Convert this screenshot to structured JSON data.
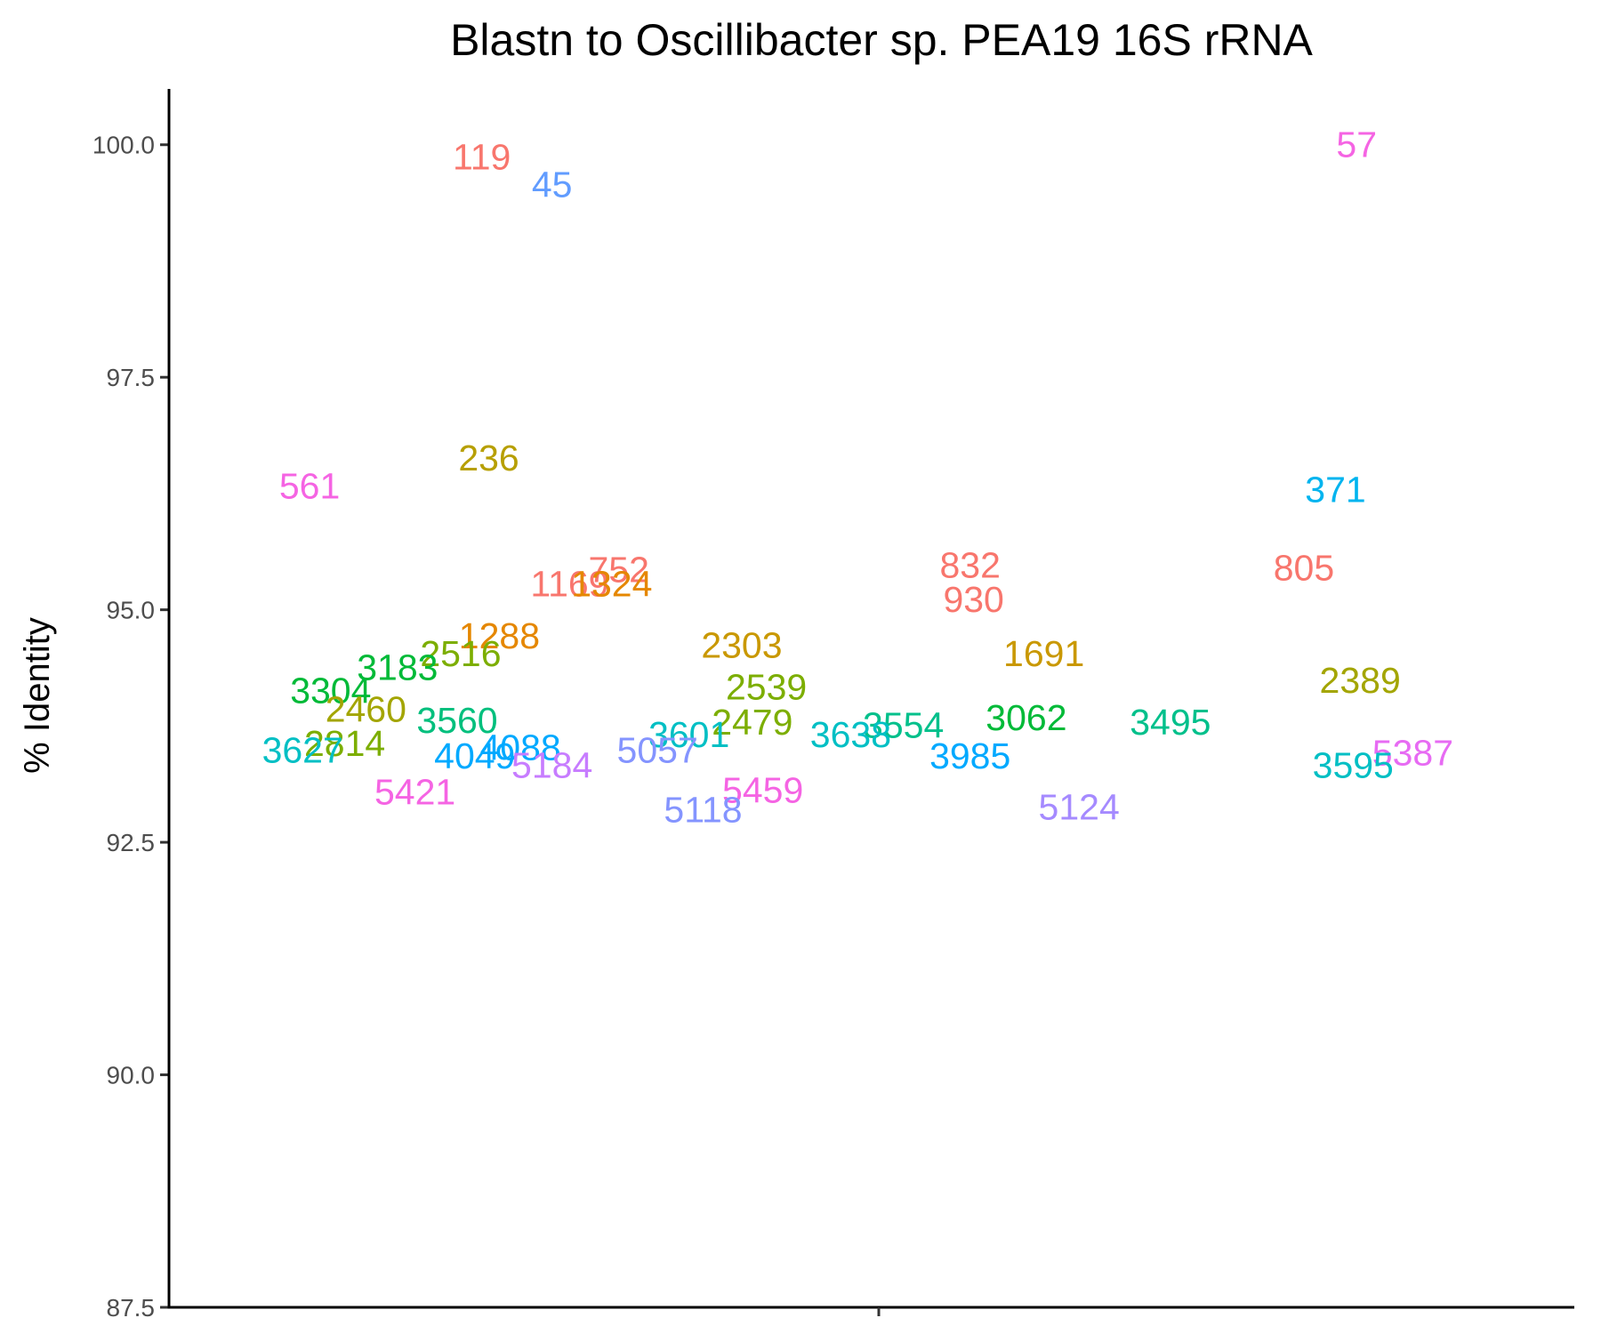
{
  "chart_data": {
    "type": "scatter",
    "title": "Blastn to Oscillibacter sp. PEA19 16S rRNA",
    "xlabel": "",
    "ylabel": "% Identity",
    "ylim": [
      87.5,
      100.6
    ],
    "yticks": [
      "87.5",
      "90.0",
      "92.5",
      "95.0",
      "97.5",
      "100.0"
    ],
    "grid": false,
    "legend": "none",
    "points": [
      {
        "label": "119",
        "x": -0.565,
        "y": 99.87,
        "color": "#F8766D"
      },
      {
        "label": "45",
        "x": -0.465,
        "y": 99.57,
        "color": "#619CFF"
      },
      {
        "label": "57",
        "x": 0.68,
        "y": 100.0,
        "color": "#F564E3"
      },
      {
        "label": "236",
        "x": -0.555,
        "y": 96.63,
        "color": "#B79F00"
      },
      {
        "label": "561",
        "x": -0.81,
        "y": 96.33,
        "color": "#F564E3"
      },
      {
        "label": "371",
        "x": 0.65,
        "y": 96.29,
        "color": "#00B4EF"
      },
      {
        "label": "752",
        "x": -0.37,
        "y": 95.43,
        "color": "#F8766D"
      },
      {
        "label": "832",
        "x": 0.13,
        "y": 95.48,
        "color": "#F8766D"
      },
      {
        "label": "805",
        "x": 0.605,
        "y": 95.45,
        "color": "#F8766D"
      },
      {
        "label": "1169",
        "x": -0.44,
        "y": 95.28,
        "color": "#F8766D"
      },
      {
        "label": "1324",
        "x": -0.38,
        "y": 95.28,
        "color": "#E58700"
      },
      {
        "label": "930",
        "x": 0.135,
        "y": 95.11,
        "color": "#F8766D"
      },
      {
        "label": "1288",
        "x": -0.54,
        "y": 94.72,
        "color": "#E58700"
      },
      {
        "label": "2303",
        "x": -0.195,
        "y": 94.62,
        "color": "#C99800"
      },
      {
        "label": "1691",
        "x": 0.235,
        "y": 94.53,
        "color": "#C99800"
      },
      {
        "label": "2516",
        "x": -0.595,
        "y": 94.53,
        "color": "#7CAE00"
      },
      {
        "label": "3183",
        "x": -0.685,
        "y": 94.38,
        "color": "#00BA38"
      },
      {
        "label": "2389",
        "x": 0.685,
        "y": 94.24,
        "color": "#A3A500"
      },
      {
        "label": "2539",
        "x": -0.16,
        "y": 94.17,
        "color": "#7CAE00"
      },
      {
        "label": "3304",
        "x": -0.78,
        "y": 94.13,
        "color": "#00BA38"
      },
      {
        "label": "2460",
        "x": -0.73,
        "y": 93.93,
        "color": "#A3A500"
      },
      {
        "label": "3062",
        "x": 0.21,
        "y": 93.84,
        "color": "#00BA38"
      },
      {
        "label": "3560",
        "x": -0.6,
        "y": 93.81,
        "color": "#00BF7D"
      },
      {
        "label": "3495",
        "x": 0.415,
        "y": 93.79,
        "color": "#00C08B"
      },
      {
        "label": "2479",
        "x": -0.18,
        "y": 93.79,
        "color": "#7CAE00"
      },
      {
        "label": "3554",
        "x": 0.035,
        "y": 93.76,
        "color": "#00C08B"
      },
      {
        "label": "3601",
        "x": -0.27,
        "y": 93.66,
        "color": "#00BFC4"
      },
      {
        "label": "3638",
        "x": -0.04,
        "y": 93.66,
        "color": "#00BFC4"
      },
      {
        "label": "2814",
        "x": -0.76,
        "y": 93.56,
        "color": "#7CAE00"
      },
      {
        "label": "3627",
        "x": -0.82,
        "y": 93.49,
        "color": "#00BFC4"
      },
      {
        "label": "4088",
        "x": -0.51,
        "y": 93.52,
        "color": "#00A9FF"
      },
      {
        "label": "5057",
        "x": -0.315,
        "y": 93.49,
        "color": "#8494FF"
      },
      {
        "label": "4049",
        "x": -0.575,
        "y": 93.43,
        "color": "#00A9FF"
      },
      {
        "label": "3985",
        "x": 0.13,
        "y": 93.43,
        "color": "#00A9FF"
      },
      {
        "label": "5387",
        "x": 0.76,
        "y": 93.46,
        "color": "#E76BF3"
      },
      {
        "label": "3595",
        "x": 0.675,
        "y": 93.33,
        "color": "#00BFC4"
      },
      {
        "label": "5184",
        "x": -0.465,
        "y": 93.33,
        "color": "#C77CFF"
      },
      {
        "label": "5459",
        "x": -0.165,
        "y": 93.06,
        "color": "#F564E3"
      },
      {
        "label": "5421",
        "x": -0.66,
        "y": 93.04,
        "color": "#F564E3"
      },
      {
        "label": "5124",
        "x": 0.285,
        "y": 92.88,
        "color": "#A58AFF"
      },
      {
        "label": "5118",
        "x": -0.25,
        "y": 92.85,
        "color": "#8494FF"
      }
    ]
  }
}
